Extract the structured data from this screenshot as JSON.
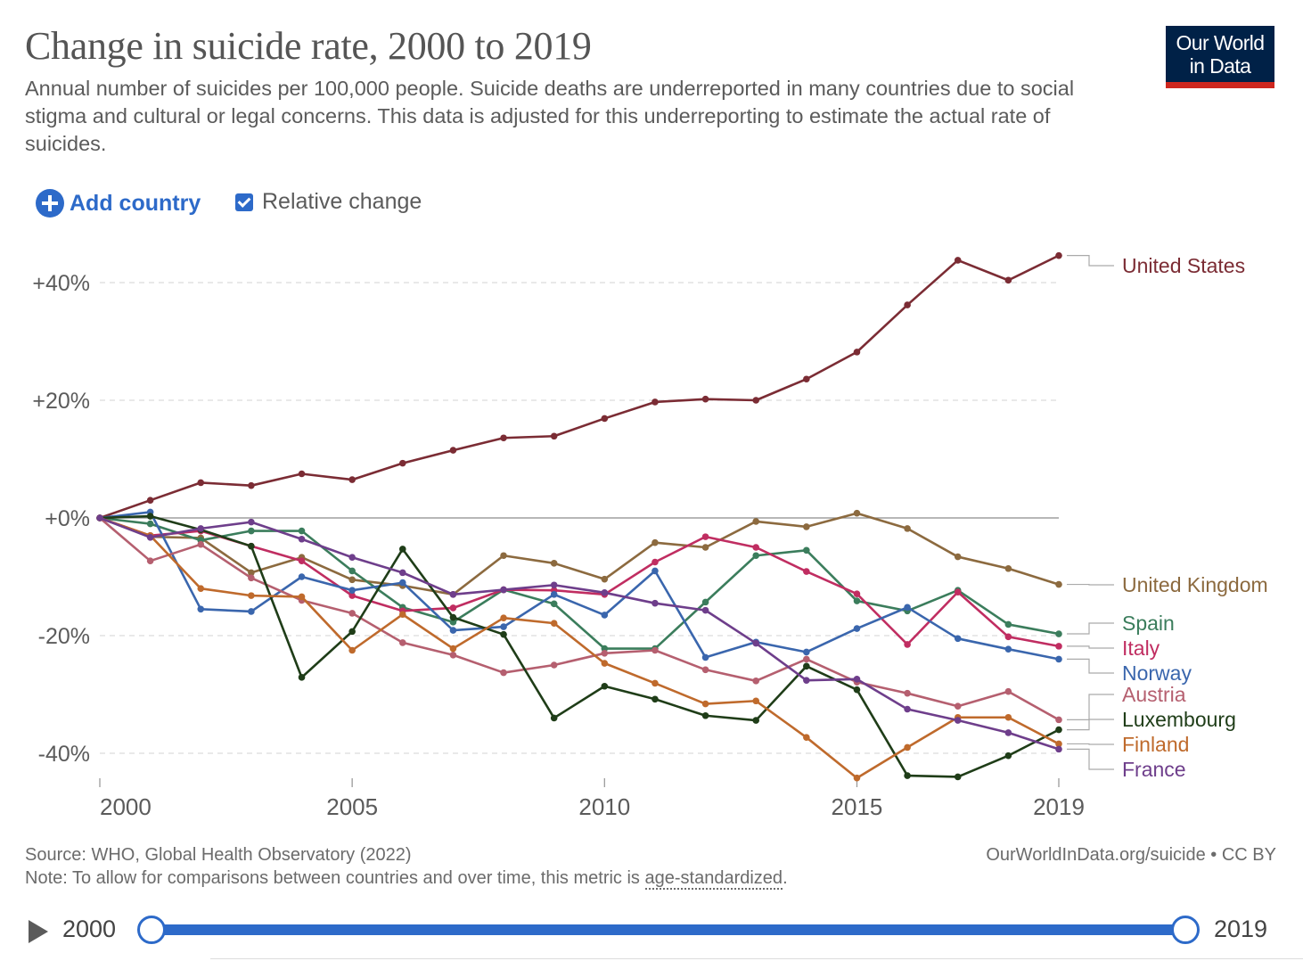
{
  "header": {
    "title": "Change in suicide rate, 2000 to 2019",
    "subtitle": "Annual number of suicides per 100,000 people. Suicide deaths are underreported in many countries due to social stigma and cultural or legal concerns. This data is adjusted for this underreporting to estimate the actual rate of suicides.",
    "logo_line1": "Our World",
    "logo_line2": "in Data"
  },
  "controls": {
    "add_country_label": "Add country",
    "relative_change_label": "Relative change",
    "relative_change_checked": true
  },
  "colors": {
    "accent": "#2d6ac9",
    "logo_bg": "#002147",
    "logo_bar": "#ce261e"
  },
  "chart_data": {
    "type": "line",
    "ylabel_unit": "%",
    "x": [
      2000,
      2001,
      2002,
      2003,
      2004,
      2005,
      2006,
      2007,
      2008,
      2009,
      2010,
      2011,
      2012,
      2013,
      2014,
      2015,
      2016,
      2017,
      2018,
      2019
    ],
    "xticks": [
      "2000",
      "2005",
      "2010",
      "2015",
      "2019"
    ],
    "xtick_values": [
      2000,
      2005,
      2010,
      2015,
      2019
    ],
    "yticks": [
      "-40%",
      "-20%",
      "+0%",
      "+20%",
      "+40%"
    ],
    "ytick_values": [
      -40,
      -20,
      0,
      20,
      40
    ],
    "ylim": [
      -45,
      45
    ],
    "xlim": [
      2000,
      2019
    ],
    "grid": "horizontal dashed",
    "legend": "right, labels at line ends",
    "series": [
      {
        "name": "United States",
        "color": "#7b2c34",
        "values": [
          0,
          3,
          6,
          5.5,
          7.5,
          6.5,
          9.3,
          11.5,
          13.6,
          13.9,
          16.9,
          19.7,
          20.2,
          20,
          23.6,
          28.2,
          36.2,
          43.8,
          40.4,
          44.6
        ]
      },
      {
        "name": "United Kingdom",
        "color": "#8c6a3f",
        "values": [
          0,
          -3.2,
          -3.4,
          -9.3,
          -6.7,
          -10.5,
          -11.5,
          -13,
          -6.4,
          -7.7,
          -10.4,
          -4.2,
          -5,
          -0.6,
          -1.5,
          0.8,
          -1.8,
          -6.6,
          -8.6,
          -11.3
        ]
      },
      {
        "name": "Spain",
        "color": "#3b7d5c",
        "values": [
          0,
          -1,
          -3.8,
          -2.2,
          -2.2,
          -9,
          -15.2,
          -17.7,
          -12.2,
          -14.6,
          -22.2,
          -22.2,
          -14.3,
          -6.4,
          -5.5,
          -14.1,
          -15.8,
          -12.3,
          -18.1,
          -19.7
        ]
      },
      {
        "name": "Italy",
        "color": "#c02d61",
        "values": [
          0,
          -3,
          -2.2,
          -4.8,
          -7.3,
          -13.2,
          -15.8,
          -15.3,
          -12.2,
          -12.3,
          -13,
          -7.5,
          -3.2,
          -5,
          -9.1,
          -12.9,
          -21.5,
          -12.6,
          -20.2,
          -21.8
        ]
      },
      {
        "name": "Norway",
        "color": "#3a66ad",
        "values": [
          0,
          1,
          -15.5,
          -15.9,
          -10,
          -12.3,
          -11,
          -19.1,
          -18.5,
          -13,
          -16.5,
          -9,
          -23.7,
          -21.1,
          -22.8,
          -18.8,
          -15.2,
          -20.5,
          -22.3,
          -24
        ]
      },
      {
        "name": "Austria",
        "color": "#b55f6f",
        "values": [
          0,
          -7.3,
          -4.5,
          -10.2,
          -14,
          -16.2,
          -21.2,
          -23.3,
          -26.3,
          -25,
          -23,
          -22.5,
          -25.8,
          -27.7,
          -24,
          -27.9,
          -29.8,
          -32,
          -29.5,
          -34.3
        ]
      },
      {
        "name": "Luxembourg",
        "color": "#1f3d18",
        "values": [
          0,
          0.3,
          -2,
          -4.8,
          -27.1,
          -19.3,
          -5.3,
          -16.9,
          -19.8,
          -34,
          -28.6,
          -30.8,
          -33.6,
          -34.4,
          -25.2,
          -29.2,
          -43.8,
          -44,
          -40.4,
          -36
        ]
      },
      {
        "name": "Finland",
        "color": "#bf6a2c",
        "values": [
          0,
          -3,
          -12,
          -13.2,
          -13.4,
          -22.5,
          -16.4,
          -22.2,
          -17,
          -17.9,
          -24.7,
          -28.1,
          -31.6,
          -31.1,
          -37.3,
          -44.2,
          -39,
          -33.9,
          -33.9,
          -38.4
        ]
      },
      {
        "name": "France",
        "color": "#6e3e8b",
        "values": [
          0,
          -3.3,
          -1.8,
          -0.7,
          -3.6,
          -6.7,
          -9.3,
          -13,
          -12.2,
          -11.4,
          -12.7,
          -14.5,
          -15.7,
          -21.3,
          -27.6,
          -27.4,
          -32.5,
          -34.4,
          -36.5,
          -39.3
        ]
      }
    ]
  },
  "footer": {
    "source": "Source: WHO, Global Health Observatory (2022)",
    "note_prefix": "Note: To allow for comparisons between countries and over time, this metric is ",
    "note_term": "age-standardized",
    "note_suffix": ".",
    "credit": "OurWorldInData.org/suicide • CC BY"
  },
  "timeline": {
    "start_label": "2000",
    "end_label": "2019",
    "start_value": 2000,
    "end_value": 2019
  }
}
